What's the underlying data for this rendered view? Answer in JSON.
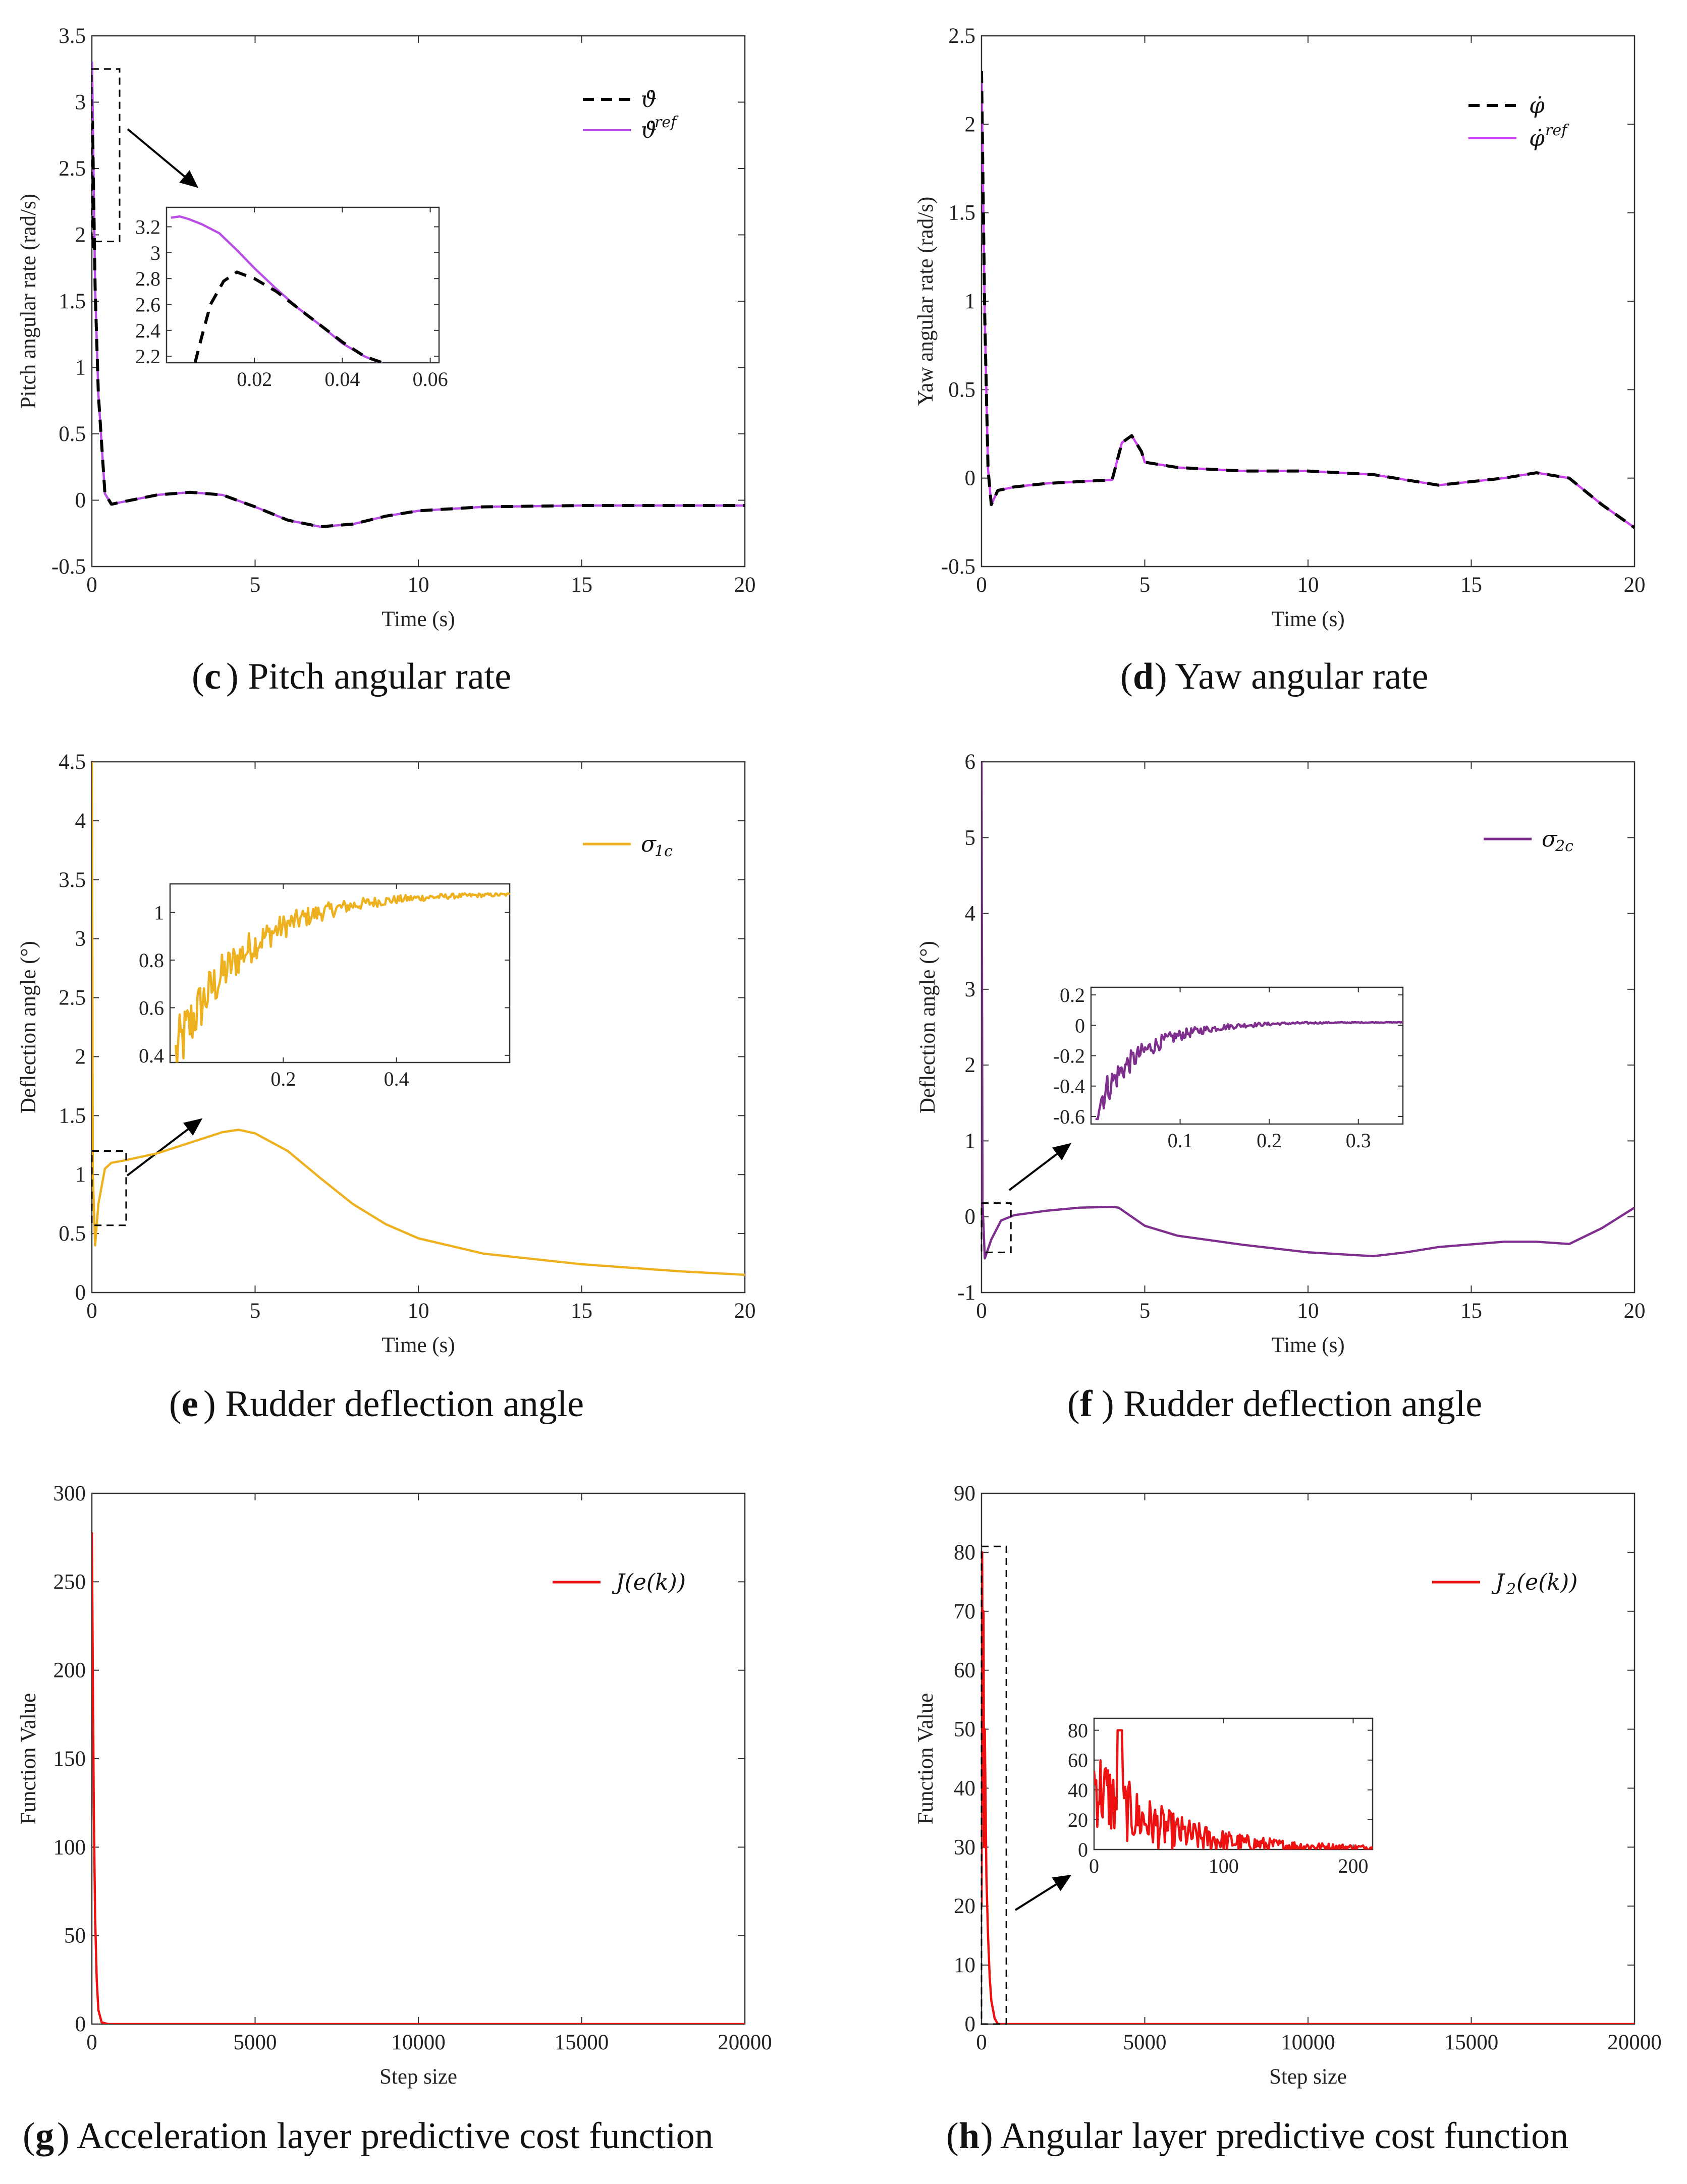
{
  "chart_data": [
    {
      "type": "line",
      "panel_letter": "c",
      "caption_pre": "(",
      "caption_post": ") Pitch angular rate",
      "xlabel": "Time (s)",
      "ylabel": "Pitch angular rate (rad/s)",
      "xlim": [
        0,
        20
      ],
      "ylim": [
        -0.5,
        3.5
      ],
      "xticks": [
        0,
        5,
        10,
        15,
        20
      ],
      "yticks": [
        -0.5,
        0,
        0.5,
        1,
        1.5,
        2,
        2.5,
        3,
        3.5
      ],
      "series": [
        {
          "name": "ϑ̇ (dot-theta)",
          "legend_main": "ϑ̇",
          "legend_sup": "",
          "style": "dashed",
          "color": "#000000",
          "x": [
            0,
            0.02,
            0.1,
            0.2,
            0.4,
            0.6,
            1,
            2,
            3,
            4,
            5,
            6,
            7,
            8,
            9,
            10,
            12,
            15,
            18,
            20
          ],
          "y": [
            1.9,
            2.85,
            1.6,
            0.8,
            0.05,
            -0.03,
            -0.01,
            0.04,
            0.06,
            0.04,
            -0.05,
            -0.15,
            -0.2,
            -0.18,
            -0.12,
            -0.08,
            -0.05,
            -0.04,
            -0.04,
            -0.04
          ]
        },
        {
          "name": "ϑ̇ ref",
          "legend_main": "ϑ̇",
          "legend_sup": "ref",
          "style": "solid",
          "color": "#b84ee6",
          "x": [
            0,
            0.005,
            0.02,
            0.1,
            0.2,
            0.4,
            0.6,
            1,
            2,
            3,
            4,
            5,
            6,
            7,
            8,
            9,
            10,
            12,
            15,
            18,
            20
          ],
          "y": [
            3.25,
            3.3,
            3.05,
            1.6,
            0.8,
            0.05,
            -0.03,
            -0.01,
            0.04,
            0.06,
            0.04,
            -0.05,
            -0.15,
            -0.2,
            -0.18,
            -0.12,
            -0.08,
            -0.05,
            -0.04,
            -0.04,
            -0.04
          ]
        }
      ],
      "inset": {
        "xlim": [
          0,
          0.062
        ],
        "ylim": [
          2.15,
          3.35
        ],
        "xticks": [
          0.02,
          0.04,
          0.06
        ],
        "yticks": [
          2.2,
          2.4,
          2.6,
          2.8,
          3,
          3.2
        ],
        "series": [
          {
            "style": "dashed",
            "color": "#000000",
            "x": [
              0.0065,
              0.008,
              0.01,
              0.013,
              0.016,
              0.02,
              0.025,
              0.03,
              0.035,
              0.04,
              0.045,
              0.05
            ],
            "y": [
              2.15,
              2.35,
              2.6,
              2.78,
              2.85,
              2.8,
              2.7,
              2.57,
              2.44,
              2.31,
              2.2,
              2.14
            ]
          },
          {
            "style": "solid",
            "color": "#b84ee6",
            "x": [
              0.001,
              0.003,
              0.005,
              0.008,
              0.012,
              0.016,
              0.02,
              0.025,
              0.03,
              0.035,
              0.04,
              0.045,
              0.05
            ],
            "y": [
              3.27,
              3.28,
              3.26,
              3.22,
              3.15,
              3.02,
              2.88,
              2.72,
              2.57,
              2.44,
              2.3,
              2.2,
              2.13
            ]
          }
        ]
      },
      "zoom_box": {
        "x": [
          0,
          0.85
        ],
        "y": [
          1.95,
          3.25
        ]
      }
    },
    {
      "type": "line",
      "panel_letter": "d",
      "caption_pre": "(",
      "caption_post": ") Yaw angular rate",
      "xlabel": "Time (s)",
      "ylabel": "Yaw angular rate (rad/s)",
      "xlim": [
        0,
        20
      ],
      "ylim": [
        -0.5,
        2.5
      ],
      "xticks": [
        0,
        5,
        10,
        15,
        20
      ],
      "yticks": [
        -0.5,
        0,
        0.5,
        1,
        1.5,
        2,
        2.5
      ],
      "series": [
        {
          "name": "φ̇",
          "legend_main": "φ̇",
          "legend_sup": "",
          "style": "dashed",
          "color": "#000000",
          "x": [
            0,
            0.05,
            0.1,
            0.2,
            0.3,
            0.5,
            1,
            2,
            3,
            4,
            4.3,
            4.6,
            4.9,
            5,
            6,
            8,
            10,
            12,
            14,
            16,
            17,
            18,
            19,
            20
          ],
          "y": [
            2.3,
            1.6,
            0.9,
            0.05,
            -0.15,
            -0.07,
            -0.05,
            -0.03,
            -0.02,
            -0.01,
            0.2,
            0.24,
            0.15,
            0.09,
            0.06,
            0.04,
            0.04,
            0.02,
            -0.04,
            0.0,
            0.03,
            0.0,
            -0.15,
            -0.28
          ]
        },
        {
          "name": "φ̇ ref",
          "legend_main": "φ̇",
          "legend_sup": "ref",
          "style": "solid",
          "color": "#cc44ee",
          "x": [
            0,
            0.05,
            0.1,
            0.2,
            0.3,
            0.5,
            1,
            2,
            3,
            4,
            4.3,
            4.6,
            4.9,
            5,
            6,
            8,
            10,
            12,
            14,
            16,
            17,
            18,
            19,
            20
          ],
          "y": [
            2.3,
            1.6,
            0.9,
            0.05,
            -0.15,
            -0.07,
            -0.05,
            -0.03,
            -0.02,
            -0.01,
            0.2,
            0.24,
            0.15,
            0.09,
            0.06,
            0.04,
            0.04,
            0.02,
            -0.04,
            0.0,
            0.03,
            0.0,
            -0.15,
            -0.28
          ]
        }
      ]
    },
    {
      "type": "line",
      "panel_letter": "e",
      "caption_pre": "(",
      "caption_post": ") Rudder deflection angle",
      "xlabel": "Time (s)",
      "ylabel": "Deflection angle (°)",
      "xlim": [
        0,
        20
      ],
      "ylim": [
        0,
        4.5
      ],
      "xticks": [
        0,
        5,
        10,
        15,
        20
      ],
      "yticks": [
        0,
        0.5,
        1,
        1.5,
        2,
        2.5,
        3,
        3.5,
        4,
        4.5
      ],
      "series": [
        {
          "name": "σ1c",
          "legend_main": "σ",
          "legend_sub": "1c",
          "style": "solid",
          "color": "#edb120",
          "x": [
            0,
            0.03,
            0.1,
            0.2,
            0.4,
            0.6,
            1,
            2,
            3,
            4,
            4.5,
            5,
            6,
            7,
            8,
            9,
            10,
            12,
            15,
            18,
            20
          ],
          "y": [
            4.5,
            1.0,
            0.4,
            0.75,
            1.05,
            1.1,
            1.12,
            1.18,
            1.27,
            1.36,
            1.38,
            1.35,
            1.2,
            0.97,
            0.75,
            0.58,
            0.46,
            0.33,
            0.24,
            0.18,
            0.15
          ]
        }
      ],
      "inset": {
        "xlim": [
          0,
          0.6
        ],
        "ylim": [
          0.37,
          1.12
        ],
        "xticks": [
          0.2,
          0.4
        ],
        "yticks": [
          0.4,
          0.6,
          0.8,
          1
        ],
        "series": [
          {
            "style": "solid",
            "color": "#edb120",
            "x": [],
            "y": []
          }
        ],
        "noisy": {
          "start": 0.01,
          "end": 0.6,
          "base_from": 0.4,
          "base_to": 1.08,
          "amp": 0.14,
          "tau": 0.12
        }
      },
      "zoom_box": {
        "x": [
          0,
          1.05
        ],
        "y": [
          0.57,
          1.2
        ]
      }
    },
    {
      "type": "line",
      "panel_letter": "f",
      "caption_pre": "(",
      "caption_post": ") Rudder deflection angle",
      "xlabel": "Time (s)",
      "ylabel": "Deflection angle (°)",
      "xlim": [
        0,
        20
      ],
      "ylim": [
        -1,
        6
      ],
      "xticks": [
        0,
        5,
        10,
        15,
        20
      ],
      "yticks": [
        -1,
        0,
        1,
        2,
        3,
        4,
        5,
        6
      ],
      "series": [
        {
          "name": "σ2c",
          "legend_main": "σ",
          "legend_sub": "2c",
          "style": "solid",
          "color": "#7e2f8e",
          "x": [
            0,
            0.03,
            0.1,
            0.3,
            0.6,
            1,
            2,
            3,
            4,
            4.2,
            5,
            6,
            8,
            10,
            12,
            13,
            14,
            16,
            17,
            18,
            19,
            20
          ],
          "y": [
            6.0,
            0.2,
            -0.55,
            -0.3,
            -0.05,
            0.02,
            0.08,
            0.12,
            0.13,
            0.12,
            -0.12,
            -0.25,
            -0.37,
            -0.47,
            -0.52,
            -0.47,
            -0.4,
            -0.33,
            -0.33,
            -0.36,
            -0.15,
            0.12
          ]
        }
      ],
      "inset": {
        "xlim": [
          0,
          0.35
        ],
        "ylim": [
          -0.65,
          0.25
        ],
        "xticks": [
          0.1,
          0.2,
          0.3
        ],
        "yticks": [
          -0.6,
          -0.4,
          -0.2,
          0,
          0.2
        ],
        "series": [
          {
            "style": "solid",
            "color": "#7e2f8e",
            "x": [],
            "y": []
          }
        ],
        "noisy": {
          "start": 0.005,
          "end": 0.35,
          "base_from": -0.55,
          "base_to": 0.02,
          "amp": 0.12,
          "tau": 0.05
        }
      },
      "zoom_box": {
        "x": [
          0,
          0.9
        ],
        "y": [
          -0.47,
          0.18
        ]
      }
    },
    {
      "type": "line",
      "panel_letter": "g",
      "caption_pre": "(",
      "caption_post": ") Acceleration layer predictive cost function",
      "xlabel": "Step size",
      "ylabel": "Function Value",
      "xlim": [
        0,
        20000
      ],
      "ylim": [
        0,
        300
      ],
      "xticks": [
        0,
        5000,
        10000,
        15000,
        20000
      ],
      "yticks": [
        0,
        50,
        100,
        150,
        200,
        250,
        300
      ],
      "series": [
        {
          "name": "J(e(k))",
          "legend_main": "J(e(k))",
          "style": "solid",
          "color": "#ee1111",
          "x": [
            0,
            30,
            60,
            100,
            150,
            200,
            300,
            500,
            20000
          ],
          "y": [
            278,
            200,
            120,
            60,
            25,
            8,
            1,
            0,
            0
          ]
        }
      ]
    },
    {
      "type": "line",
      "panel_letter": "h",
      "caption_pre": "(",
      "caption_post": ") Angular layer predictive cost function",
      "xlabel": "Step size",
      "ylabel": "Function Value",
      "xlim": [
        0,
        20000
      ],
      "ylim": [
        0,
        90
      ],
      "xticks": [
        0,
        5000,
        10000,
        15000,
        20000
      ],
      "yticks": [
        0,
        10,
        20,
        30,
        40,
        50,
        60,
        70,
        80,
        90
      ],
      "series": [
        {
          "name": "J2(e(k))",
          "legend_main": "J",
          "legend_sub": "2",
          "legend_tail": "(e(k))",
          "style": "solid",
          "color": "#ee1111",
          "x": [
            0,
            20,
            40,
            60,
            80,
            100,
            150,
            200,
            250,
            300,
            400,
            500,
            20000
          ],
          "y": [
            20,
            80,
            40,
            70,
            30,
            50,
            25,
            15,
            8,
            4,
            1,
            0,
            0
          ]
        }
      ],
      "inset": {
        "xlim": [
          0,
          215
        ],
        "ylim": [
          0,
          88
        ],
        "xticks": [
          0,
          100,
          200
        ],
        "yticks": [
          0,
          20,
          40,
          60,
          80
        ],
        "series": [
          {
            "style": "solid",
            "color": "#ee1111",
            "x": [],
            "y": []
          }
        ],
        "noisy": {
          "start": 0,
          "end": 215,
          "base_from": 45,
          "base_to": 1,
          "amp": 30,
          "tau": 45,
          "peak_at": 20,
          "peak_val": 80
        }
      },
      "zoom_box": {
        "x": [
          0,
          760
        ],
        "y": [
          0,
          81
        ]
      }
    }
  ]
}
